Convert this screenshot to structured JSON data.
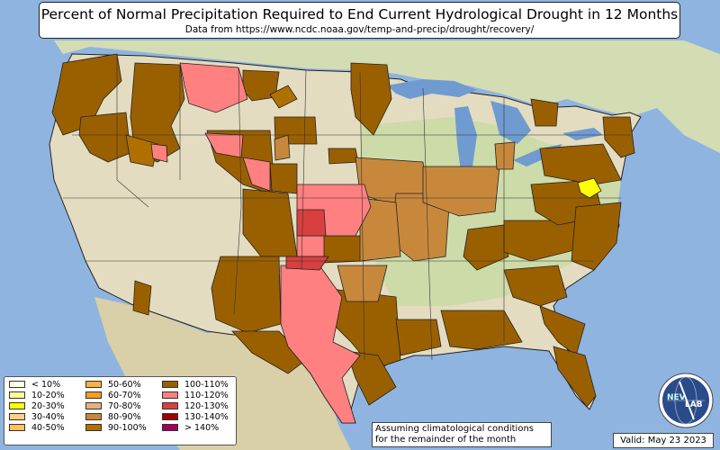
{
  "title": "Percent of Normal Precipitation Required to End Current Hydrological Drought in 12 Months",
  "subtitle": "Data from https://www.ncdc.noaa.gov/temp-and-precip/drought/recovery/",
  "note_line1": "Assuming climatological conditions",
  "note_line2": "for the remainder of the month",
  "valid": "Valid: May 23 2023",
  "logo": {
    "text_nev": "NEV",
    "text_lab": "LAB"
  },
  "colors": {
    "ocean": "#8fb4e0",
    "lakes": "#6f9bd0",
    "land_dry": "#e6dcc2",
    "land_green": "#c9d9a8",
    "boundaries": "#222222"
  },
  "legend": {
    "columns": [
      [
        {
          "label": "< 10%",
          "color": "#ffffe0"
        },
        {
          "label": "10-20%",
          "color": "#ffff99"
        },
        {
          "label": "20-30%",
          "color": "#ffff00"
        },
        {
          "label": "30-40%",
          "color": "#ffd080"
        },
        {
          "label": "40-50%",
          "color": "#ffc060"
        }
      ],
      [
        {
          "label": "50-60%",
          "color": "#ffb040"
        },
        {
          "label": "60-70%",
          "color": "#ff9a20"
        },
        {
          "label": "70-80%",
          "color": "#e6b080"
        },
        {
          "label": "80-90%",
          "color": "#c8883c"
        },
        {
          "label": "90-100%",
          "color": "#b07000"
        }
      ],
      [
        {
          "label": "100-110%",
          "color": "#9a6000"
        },
        {
          "label": "110-120%",
          "color": "#ff8080"
        },
        {
          "label": "120-130%",
          "color": "#d84040"
        },
        {
          "label": "130-140%",
          "color": "#a00000"
        },
        {
          "label": "> 140%",
          "color": "#a0005a"
        }
      ]
    ]
  }
}
